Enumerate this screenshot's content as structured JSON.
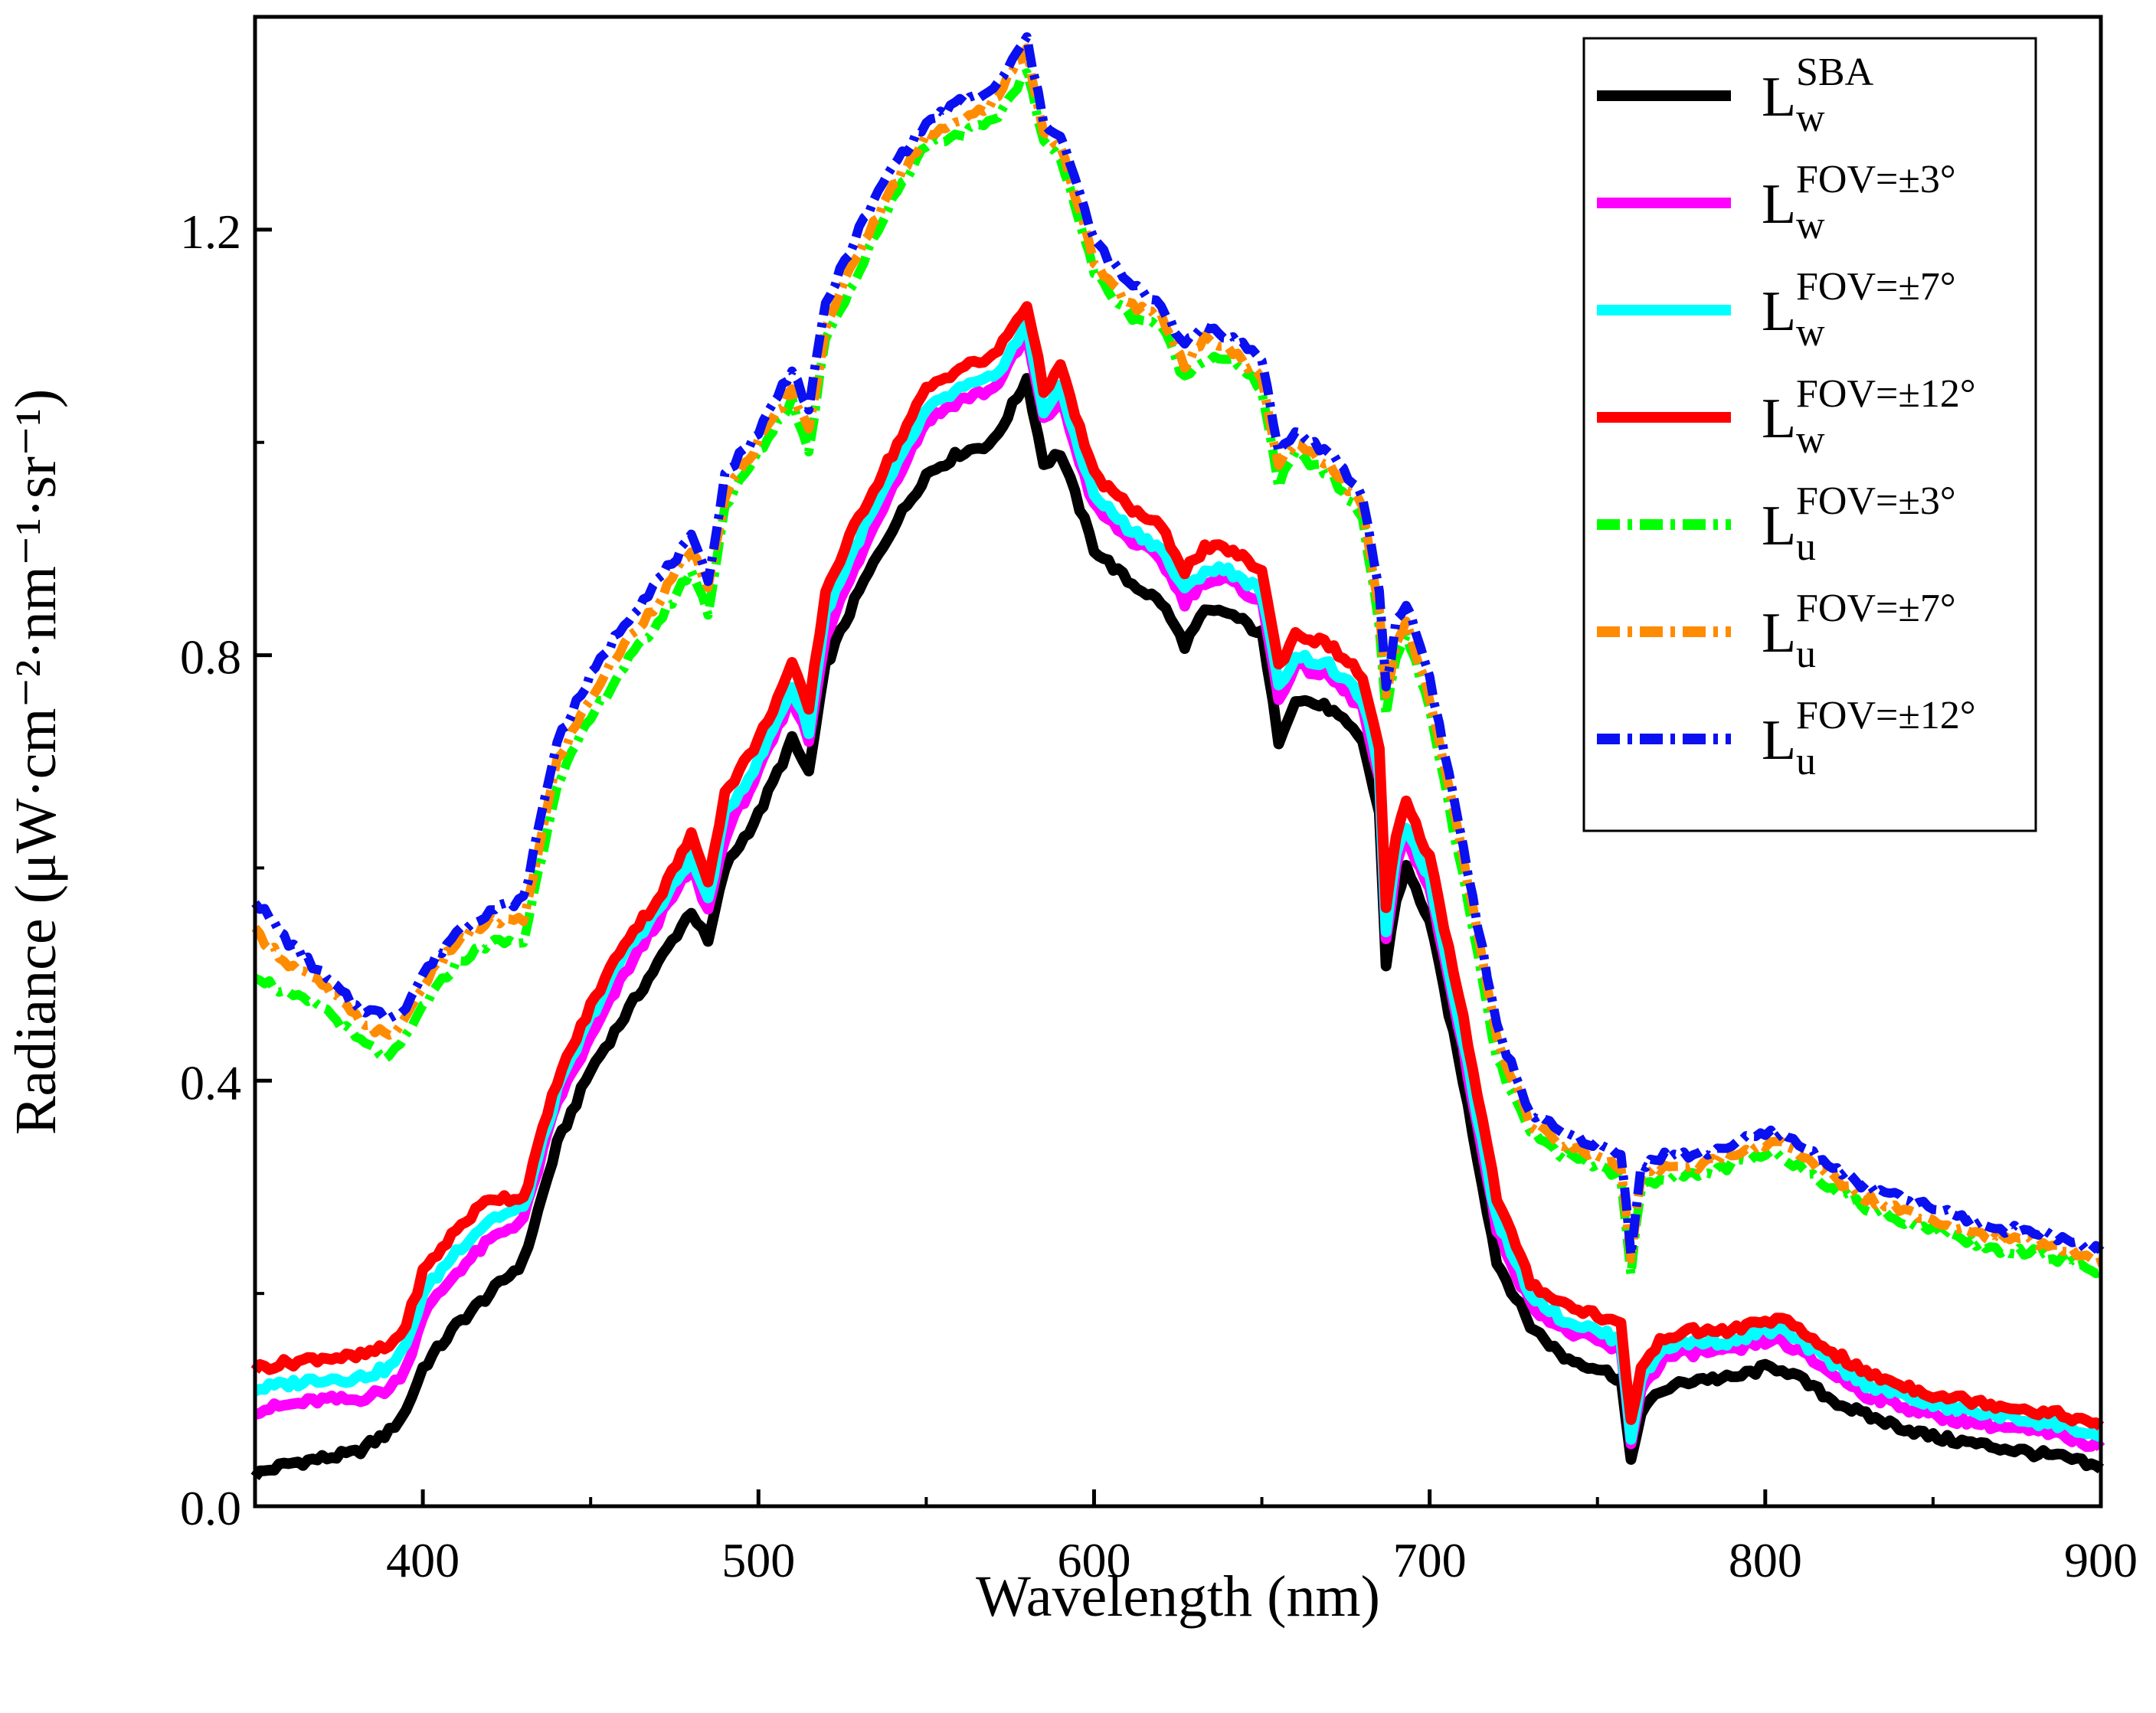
{
  "chart_data": {
    "type": "line",
    "xlabel": "Wavelength (nm)",
    "ylabel": "Radiance (μW·cm⁻²·nm⁻¹·sr⁻¹)",
    "xlim": [
      350,
      900
    ],
    "ylim": [
      0.0,
      1.4
    ],
    "x_ticks": [
      400,
      500,
      600,
      700,
      800,
      900
    ],
    "x_tick_labels": [
      "400",
      "500",
      "600",
      "700",
      "800",
      "900"
    ],
    "y_ticks": [
      0.0,
      0.4,
      0.8,
      1.2
    ],
    "y_tick_labels": [
      "0.0",
      "0.4",
      "0.8",
      "1.2"
    ],
    "legend_position": "top-right",
    "grid": false,
    "series": [
      {
        "name": "Lw^SBA",
        "label_base": "L",
        "label_sub": "w",
        "label_sup": "SBA",
        "color": "#000000",
        "style": "solid",
        "x": [
          350,
          360,
          370,
          380,
          390,
          395,
          400,
          410,
          420,
          430,
          440,
          450,
          460,
          470,
          480,
          485,
          490,
          500,
          510,
          515,
          520,
          530,
          540,
          550,
          560,
          570,
          580,
          585,
          590,
          600,
          610,
          620,
          627,
          633,
          640,
          650,
          655,
          660,
          670,
          680,
          685,
          687,
          690,
          693,
          700,
          710,
          720,
          730,
          740,
          750,
          757,
          760,
          763,
          770,
          780,
          790,
          800,
          805,
          810,
          820,
          830,
          840,
          850,
          860,
          870,
          880,
          890,
          900
        ],
        "y": [
          0.03,
          0.04,
          0.045,
          0.05,
          0.07,
          0.09,
          0.13,
          0.17,
          0.2,
          0.23,
          0.34,
          0.41,
          0.46,
          0.51,
          0.56,
          0.53,
          0.6,
          0.65,
          0.72,
          0.69,
          0.79,
          0.86,
          0.92,
          0.97,
          0.99,
          1.0,
          1.06,
          0.98,
          0.99,
          0.9,
          0.87,
          0.85,
          0.81,
          0.84,
          0.84,
          0.82,
          0.72,
          0.76,
          0.75,
          0.72,
          0.65,
          0.51,
          0.57,
          0.6,
          0.55,
          0.4,
          0.23,
          0.17,
          0.14,
          0.13,
          0.12,
          0.04,
          0.09,
          0.11,
          0.12,
          0.12,
          0.13,
          0.13,
          0.12,
          0.1,
          0.085,
          0.075,
          0.065,
          0.06,
          0.055,
          0.05,
          0.045,
          0.035
        ]
      },
      {
        "name": "Lw^FOV=±3°",
        "label_base": "L",
        "label_sub": "w",
        "label_sup": "FOV=±3°",
        "color": "#ff00ff",
        "style": "solid",
        "x": [
          350,
          360,
          370,
          380,
          390,
          395,
          400,
          410,
          420,
          430,
          440,
          450,
          460,
          470,
          480,
          485,
          490,
          500,
          510,
          515,
          520,
          530,
          540,
          550,
          560,
          570,
          580,
          585,
          590,
          600,
          610,
          620,
          627,
          633,
          640,
          650,
          655,
          660,
          670,
          680,
          685,
          687,
          690,
          693,
          700,
          710,
          720,
          730,
          740,
          750,
          757,
          760,
          763,
          770,
          780,
          790,
          800,
          805,
          810,
          820,
          830,
          840,
          850,
          860,
          870,
          880,
          890,
          900
        ],
        "y": [
          0.09,
          0.095,
          0.1,
          0.1,
          0.11,
          0.13,
          0.18,
          0.22,
          0.25,
          0.27,
          0.38,
          0.44,
          0.5,
          0.55,
          0.6,
          0.56,
          0.63,
          0.69,
          0.76,
          0.72,
          0.82,
          0.89,
          0.96,
          1.02,
          1.04,
          1.05,
          1.1,
          1.02,
          1.04,
          0.94,
          0.91,
          0.89,
          0.85,
          0.87,
          0.87,
          0.85,
          0.76,
          0.79,
          0.78,
          0.75,
          0.68,
          0.53,
          0.6,
          0.63,
          0.58,
          0.43,
          0.26,
          0.19,
          0.165,
          0.155,
          0.145,
          0.06,
          0.11,
          0.14,
          0.145,
          0.145,
          0.155,
          0.155,
          0.145,
          0.125,
          0.105,
          0.095,
          0.085,
          0.08,
          0.075,
          0.07,
          0.065,
          0.055
        ]
      },
      {
        "name": "Lw^FOV=±7°",
        "label_base": "L",
        "label_sub": "w",
        "label_sup": "FOV=±7°",
        "color": "#00ffff",
        "style": "solid",
        "x": [
          350,
          360,
          370,
          380,
          390,
          395,
          400,
          410,
          420,
          430,
          440,
          450,
          460,
          470,
          480,
          485,
          490,
          500,
          510,
          515,
          520,
          530,
          540,
          550,
          560,
          570,
          580,
          585,
          590,
          600,
          610,
          620,
          627,
          633,
          640,
          650,
          655,
          660,
          670,
          680,
          685,
          687,
          690,
          693,
          700,
          710,
          720,
          730,
          740,
          750,
          757,
          760,
          763,
          770,
          780,
          790,
          800,
          805,
          810,
          820,
          830,
          840,
          850,
          860,
          870,
          880,
          890,
          900
        ],
        "y": [
          0.11,
          0.115,
          0.12,
          0.12,
          0.13,
          0.15,
          0.2,
          0.24,
          0.27,
          0.28,
          0.39,
          0.46,
          0.52,
          0.56,
          0.61,
          0.57,
          0.65,
          0.7,
          0.77,
          0.73,
          0.84,
          0.91,
          0.97,
          1.03,
          1.05,
          1.06,
          1.11,
          1.03,
          1.05,
          0.95,
          0.92,
          0.9,
          0.86,
          0.88,
          0.88,
          0.86,
          0.77,
          0.8,
          0.79,
          0.76,
          0.69,
          0.54,
          0.61,
          0.64,
          0.59,
          0.44,
          0.27,
          0.2,
          0.175,
          0.165,
          0.155,
          0.065,
          0.12,
          0.15,
          0.155,
          0.155,
          0.165,
          0.165,
          0.155,
          0.135,
          0.115,
          0.105,
          0.095,
          0.09,
          0.085,
          0.08,
          0.075,
          0.065
        ]
      },
      {
        "name": "Lw^FOV=±12°",
        "label_base": "L",
        "label_sub": "w",
        "label_sup": "FOV=±12°",
        "color": "#ff0000",
        "style": "solid",
        "x": [
          350,
          360,
          370,
          380,
          390,
          395,
          400,
          410,
          420,
          430,
          440,
          450,
          460,
          470,
          480,
          485,
          490,
          500,
          510,
          515,
          520,
          530,
          540,
          550,
          560,
          570,
          580,
          585,
          590,
          600,
          610,
          620,
          627,
          633,
          640,
          650,
          655,
          660,
          670,
          680,
          685,
          687,
          690,
          693,
          700,
          710,
          720,
          730,
          740,
          750,
          757,
          760,
          763,
          770,
          780,
          790,
          800,
          805,
          810,
          820,
          830,
          840,
          850,
          860,
          870,
          880,
          890,
          900
        ],
        "y": [
          0.13,
          0.135,
          0.14,
          0.14,
          0.15,
          0.17,
          0.22,
          0.26,
          0.29,
          0.29,
          0.4,
          0.47,
          0.53,
          0.57,
          0.63,
          0.59,
          0.67,
          0.72,
          0.79,
          0.75,
          0.86,
          0.93,
          0.99,
          1.05,
          1.07,
          1.08,
          1.13,
          1.05,
          1.07,
          0.97,
          0.94,
          0.92,
          0.88,
          0.9,
          0.9,
          0.88,
          0.79,
          0.82,
          0.81,
          0.78,
          0.71,
          0.56,
          0.63,
          0.66,
          0.61,
          0.46,
          0.29,
          0.21,
          0.19,
          0.18,
          0.17,
          0.08,
          0.13,
          0.16,
          0.165,
          0.165,
          0.175,
          0.175,
          0.165,
          0.145,
          0.125,
          0.115,
          0.105,
          0.1,
          0.095,
          0.09,
          0.085,
          0.075
        ]
      },
      {
        "name": "Lu^FOV=±3°",
        "label_base": "L",
        "label_sub": "u",
        "label_sup": "FOV=±3°",
        "color": "#00ff00",
        "style": "dash-dot",
        "x": [
          350,
          360,
          370,
          380,
          390,
          395,
          400,
          410,
          420,
          430,
          440,
          450,
          460,
          470,
          480,
          485,
          490,
          500,
          510,
          515,
          520,
          530,
          540,
          550,
          560,
          570,
          580,
          585,
          590,
          600,
          610,
          620,
          627,
          633,
          640,
          650,
          655,
          660,
          670,
          680,
          685,
          687,
          690,
          693,
          700,
          710,
          720,
          730,
          740,
          750,
          757,
          760,
          763,
          770,
          780,
          790,
          800,
          805,
          810,
          820,
          830,
          840,
          850,
          860,
          870,
          880,
          890,
          900
        ],
        "y": [
          0.5,
          0.48,
          0.47,
          0.44,
          0.42,
          0.44,
          0.47,
          0.51,
          0.53,
          0.53,
          0.68,
          0.74,
          0.79,
          0.83,
          0.88,
          0.84,
          0.94,
          0.99,
          1.04,
          0.99,
          1.1,
          1.16,
          1.23,
          1.28,
          1.29,
          1.3,
          1.35,
          1.28,
          1.27,
          1.16,
          1.12,
          1.11,
          1.06,
          1.08,
          1.08,
          1.05,
          0.96,
          0.99,
          0.97,
          0.93,
          0.83,
          0.74,
          0.8,
          0.82,
          0.75,
          0.59,
          0.42,
          0.35,
          0.33,
          0.32,
          0.31,
          0.22,
          0.3,
          0.31,
          0.31,
          0.32,
          0.33,
          0.33,
          0.32,
          0.3,
          0.28,
          0.27,
          0.26,
          0.25,
          0.24,
          0.24,
          0.23,
          0.22
        ]
      },
      {
        "name": "Lu^FOV=±7°",
        "label_base": "L",
        "label_sub": "u",
        "label_sup": "FOV=±7°",
        "color": "#ff8c00",
        "style": "dash-dot",
        "x": [
          350,
          360,
          370,
          380,
          390,
          395,
          400,
          410,
          420,
          430,
          440,
          450,
          460,
          470,
          480,
          485,
          490,
          500,
          510,
          515,
          520,
          530,
          540,
          550,
          560,
          570,
          580,
          585,
          590,
          600,
          610,
          620,
          627,
          633,
          640,
          650,
          655,
          660,
          670,
          680,
          685,
          687,
          690,
          693,
          700,
          710,
          720,
          730,
          740,
          750,
          757,
          760,
          763,
          770,
          780,
          790,
          800,
          805,
          810,
          820,
          830,
          840,
          850,
          860,
          870,
          880,
          890,
          900
        ],
        "y": [
          0.54,
          0.51,
          0.49,
          0.46,
          0.44,
          0.46,
          0.49,
          0.53,
          0.55,
          0.55,
          0.7,
          0.76,
          0.81,
          0.85,
          0.9,
          0.86,
          0.95,
          1.0,
          1.05,
          1.01,
          1.11,
          1.18,
          1.24,
          1.29,
          1.3,
          1.32,
          1.37,
          1.29,
          1.28,
          1.17,
          1.13,
          1.12,
          1.07,
          1.1,
          1.09,
          1.06,
          0.98,
          1.0,
          0.98,
          0.94,
          0.84,
          0.76,
          0.81,
          0.83,
          0.76,
          0.61,
          0.44,
          0.36,
          0.34,
          0.33,
          0.32,
          0.23,
          0.31,
          0.32,
          0.32,
          0.33,
          0.34,
          0.34,
          0.33,
          0.31,
          0.29,
          0.28,
          0.27,
          0.26,
          0.25,
          0.25,
          0.24,
          0.23
        ]
      },
      {
        "name": "Lu^FOV=±12°",
        "label_base": "L",
        "label_sub": "u",
        "label_sup": "FOV=±12°",
        "color": "#0a10f0",
        "style": "dash-dot",
        "x": [
          350,
          360,
          370,
          380,
          390,
          395,
          400,
          410,
          420,
          430,
          440,
          450,
          460,
          470,
          480,
          485,
          490,
          500,
          510,
          515,
          520,
          530,
          540,
          550,
          560,
          570,
          580,
          585,
          590,
          600,
          610,
          620,
          627,
          633,
          640,
          650,
          655,
          660,
          670,
          680,
          685,
          687,
          690,
          693,
          700,
          710,
          720,
          730,
          740,
          750,
          757,
          760,
          763,
          770,
          780,
          790,
          800,
          805,
          810,
          820,
          830,
          840,
          850,
          860,
          870,
          880,
          890,
          900
        ],
        "y": [
          0.57,
          0.53,
          0.5,
          0.47,
          0.46,
          0.47,
          0.5,
          0.54,
          0.56,
          0.57,
          0.72,
          0.78,
          0.83,
          0.87,
          0.91,
          0.87,
          0.97,
          1.01,
          1.07,
          1.03,
          1.13,
          1.2,
          1.26,
          1.3,
          1.32,
          1.33,
          1.38,
          1.3,
          1.29,
          1.19,
          1.15,
          1.13,
          1.09,
          1.11,
          1.1,
          1.08,
          0.99,
          1.01,
          0.99,
          0.95,
          0.86,
          0.77,
          0.83,
          0.85,
          0.78,
          0.62,
          0.45,
          0.37,
          0.35,
          0.34,
          0.33,
          0.24,
          0.32,
          0.33,
          0.33,
          0.34,
          0.35,
          0.35,
          0.34,
          0.32,
          0.3,
          0.29,
          0.28,
          0.27,
          0.26,
          0.26,
          0.25,
          0.24
        ]
      }
    ]
  }
}
